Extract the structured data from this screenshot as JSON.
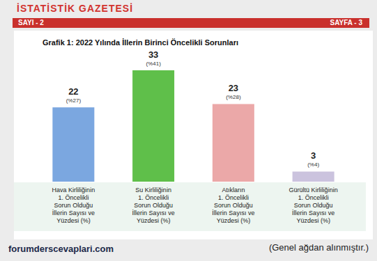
{
  "header": {
    "title": "İSTATİSTİK GAZETESİ",
    "issue": "SAYI - 2",
    "page": "SAYFA - 3"
  },
  "chart_data": {
    "type": "bar",
    "title": "Grafik 1: 2022 Yılında İllerin Birinci Öncelikli Sorunları",
    "categories": [
      "Hava Kirliliğinin\n1. Öncelikli\nSorun Olduğu\nİllerin Sayısı ve\nYüzdesi (%)",
      "Su Kirliliğinin\n1. Öncelikli\nSorun Olduğu\nİllerin Sayısı ve\nYüzdesi (%)",
      "Atıkların\n1. Öncelikli\nSorun Olduğu\nİllerin Sayısı ve\nYüzdesi (%)",
      "Gürültü Kirliliğinin\n1. Öncelikli\nSorun Olduğu\nİllerin Sayısı ve\nYüzdesi (%)"
    ],
    "values": [
      22,
      33,
      23,
      3
    ],
    "value_labels": [
      "22\n(%27)",
      "33\n(%41)",
      "23\n(%28)",
      "3\n(%4)"
    ],
    "colors": [
      "#7ba7e0",
      "#5fbf4a",
      "#eba8a8",
      "#cbc3de"
    ],
    "ylim": [
      0,
      33
    ],
    "data_labels": true,
    "grid": false,
    "tick_labels": "x"
  },
  "footer": {
    "source": "forumderscevaplari.com",
    "note": "(Genel ağdan alınmıştır.)"
  }
}
